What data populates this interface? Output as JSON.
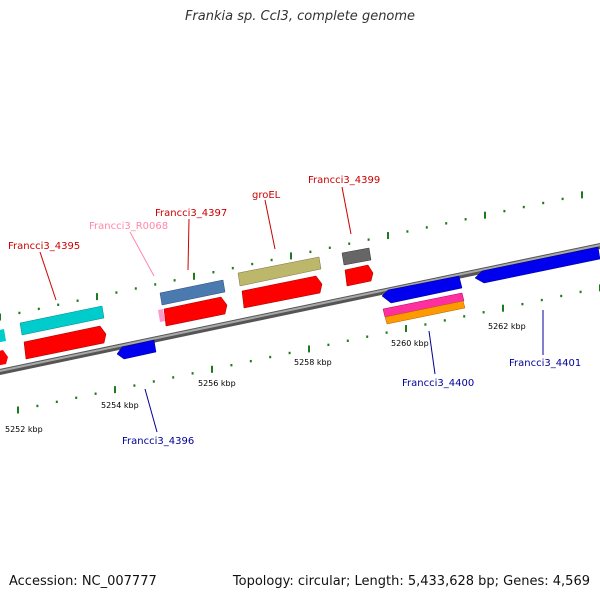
{
  "title": "Frankia sp. CcI3, complete genome",
  "accession": "Accession: NC_007777",
  "summary": "Topology: circular; Length: 5,433,628 bp; Genes: 4,569",
  "colors": {
    "backbone": "#808080",
    "tick": "#1e7a1e",
    "forward_label": "#cc0000",
    "reverse_label": "#000099",
    "rna_label": "#ff88aa",
    "red": "#ff0000",
    "blue": "#0000ee",
    "cyan": "#00cccc",
    "steel": "#4a7ab0",
    "khaki": "#bdb76b",
    "gray": "#666666",
    "magenta": "#ff2f9f",
    "orange": "#ff9900",
    "pink": "#ff99cc"
  },
  "tick_labels": [
    "5252 kbp",
    "5254 kbp",
    "5256 kbp",
    "5258 kbp",
    "5260 kbp",
    "5262 kbp"
  ],
  "gene_labels": [
    {
      "text": "Francci3_4395",
      "strand": "forward"
    },
    {
      "text": "Francci3_R0068",
      "strand": "rna"
    },
    {
      "text": "Francci3_4397",
      "strand": "forward"
    },
    {
      "text": "groEL",
      "strand": "forward"
    },
    {
      "text": "Francci3_4399",
      "strand": "forward"
    },
    {
      "text": "Francci3_4396",
      "strand": "reverse"
    },
    {
      "text": "Francci3_4400",
      "strand": "reverse"
    },
    {
      "text": "Francci3_4401",
      "strand": "reverse"
    }
  ]
}
